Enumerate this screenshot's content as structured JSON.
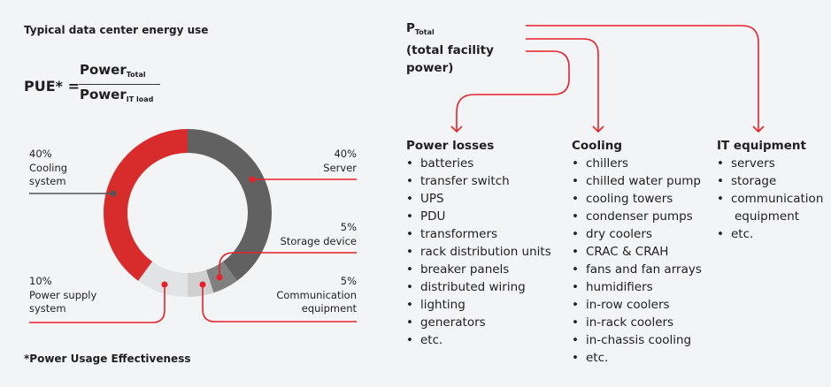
{
  "title": "Typical data center energy use",
  "pue": {
    "lhs": "PUE* =",
    "num": "Power",
    "num_sub": "Total",
    "den": "Power",
    "den_sub": "IT load"
  },
  "footnote": "*Power Usage Effectiveness",
  "donut": {
    "segments": [
      {
        "key": "server",
        "percent": "40%",
        "label": "Server",
        "value": 40,
        "color": "#616161"
      },
      {
        "key": "storage",
        "percent": "5%",
        "label": "Storage device",
        "value": 5,
        "color": "#808080"
      },
      {
        "key": "comm",
        "percent": "5%",
        "label_lines": [
          "Communication",
          "equipment"
        ],
        "value": 5,
        "color": "#d0d0d0"
      },
      {
        "key": "power",
        "percent": "10%",
        "label_lines": [
          "Power supply",
          "system"
        ],
        "value": 10,
        "color": "#e2e3e4"
      },
      {
        "key": "cooling",
        "percent": "40%",
        "label_lines": [
          "Cooling",
          "system"
        ],
        "value": 40,
        "color": "#d82b2b"
      }
    ]
  },
  "ptotal": {
    "p": "P",
    "sub": "Total",
    "line2": "(total facility",
    "line3": "power)"
  },
  "accent": "#e8202a",
  "columns": [
    {
      "title": "Power losses",
      "items": [
        "batteries",
        "transfer switch",
        "UPS",
        "PDU",
        "transformers",
        "rack distribution units",
        "breaker panels",
        "distributed wiring",
        "lighting",
        "generators",
        "etc."
      ]
    },
    {
      "title": "Cooling",
      "items": [
        "chillers",
        "chilled water pump",
        "cooling towers",
        "condenser pumps",
        "dry coolers",
        "CRAC & CRAH",
        "fans and fan arrays",
        "humidifiers",
        "in-row coolers",
        "in-rack coolers",
        "in-chassis cooling",
        "etc."
      ]
    },
    {
      "title": "IT equipment",
      "items": [
        "servers",
        "storage",
        "communication",
        "equipment",
        "etc."
      ]
    }
  ]
}
